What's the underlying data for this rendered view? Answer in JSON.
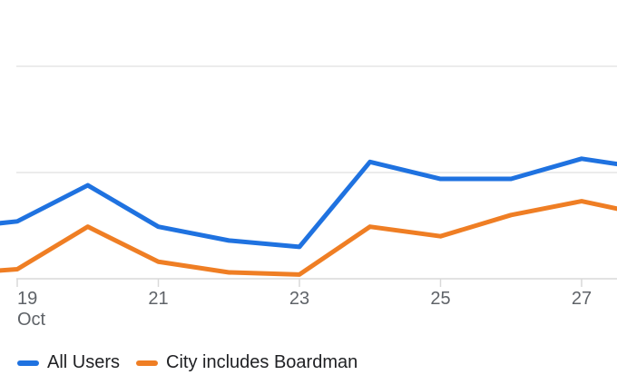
{
  "chart_data": {
    "type": "line",
    "title": "",
    "x_axis": {
      "month_label": "Oct",
      "tick_labels": [
        "19",
        "21",
        "23",
        "25",
        "27"
      ],
      "tick_days": [
        19,
        21,
        23,
        25,
        27
      ]
    },
    "y_axis": {
      "labels_visible": false,
      "unit": "gridline units (y-axis labels cropped out of view)",
      "gridline_values": [
        1,
        2
      ]
    },
    "x_days": [
      18,
      19,
      20,
      21,
      22,
      23,
      24,
      25,
      26,
      27,
      28
    ],
    "series": [
      {
        "name": "All Users",
        "color": "#1f72e0",
        "values": [
          0.47,
          0.54,
          0.88,
          0.49,
          0.36,
          0.3,
          1.1,
          0.94,
          0.94,
          1.13,
          1.03
        ]
      },
      {
        "name": "City includes Boardman",
        "color": "#ef7e24",
        "values": [
          0.04,
          0.09,
          0.49,
          0.16,
          0.06,
          0.04,
          0.49,
          0.4,
          0.6,
          0.73,
          0.59
        ]
      }
    ],
    "visible_day_range": "19–27 (line continues past both cropped edges)",
    "legend_position": "bottom-left",
    "grid": "horizontal gridlines only"
  },
  "legend": {
    "items": [
      {
        "label": "All Users",
        "color": "#1f72e0"
      },
      {
        "label": "City includes Boardman",
        "color": "#ef7e24"
      }
    ]
  },
  "colors": {
    "background": "#ffffff",
    "gridline": "#ececec",
    "axis_line": "#e2e2e2",
    "tick": "#d9d9d9",
    "axis_label": "#5f6368",
    "legend_text": "#202124"
  }
}
